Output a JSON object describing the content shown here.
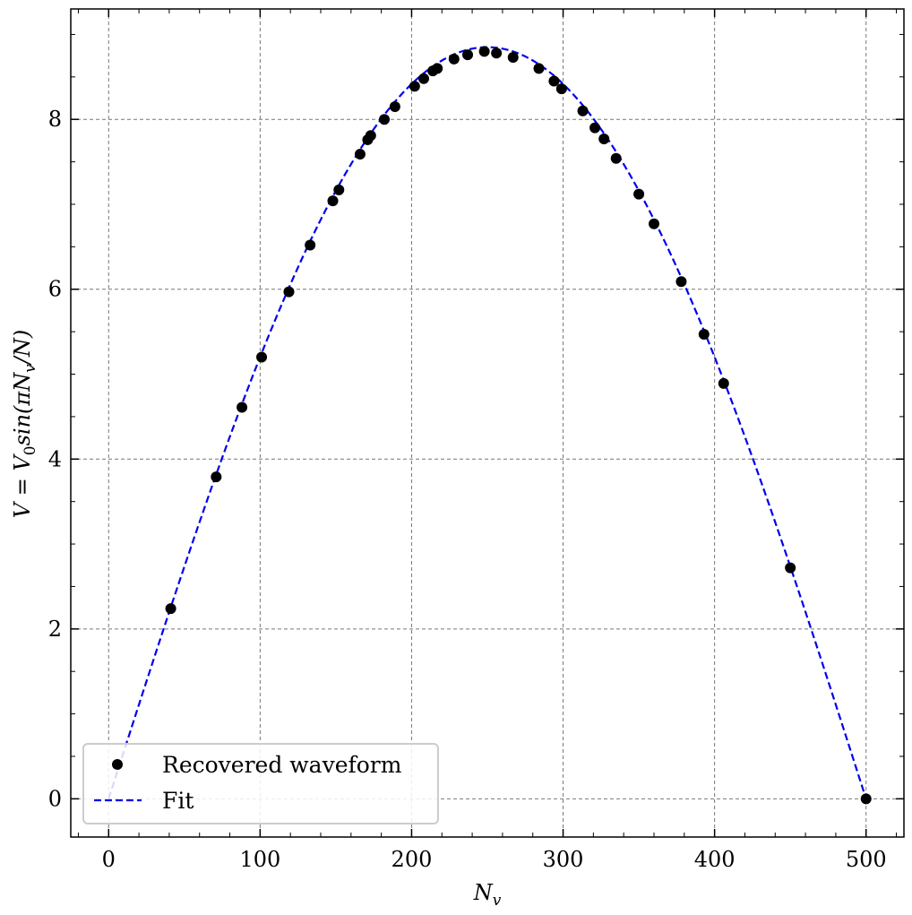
{
  "chart_data": {
    "type": "scatter",
    "xlabel": "N_v",
    "ylabel": "V = V₀sin(πN_v/N)",
    "xlim": [
      -25,
      525
    ],
    "ylim": [
      -0.45,
      9.3
    ],
    "x_ticks": [
      0,
      100,
      200,
      300,
      400,
      500
    ],
    "y_ticks": [
      0,
      2,
      4,
      6,
      8
    ],
    "grid": true,
    "legend_position": "lower-left",
    "series": [
      {
        "name": "Recovered waveform",
        "style": "markers",
        "color": "#000000",
        "points": [
          [
            41,
            2.24
          ],
          [
            71,
            3.79
          ],
          [
            88,
            4.61
          ],
          [
            101,
            5.2
          ],
          [
            119,
            5.97
          ],
          [
            133,
            6.52
          ],
          [
            148,
            7.04
          ],
          [
            152,
            7.17
          ],
          [
            166,
            7.59
          ],
          [
            171,
            7.76
          ],
          [
            173,
            7.81
          ],
          [
            182,
            8.0
          ],
          [
            189,
            8.15
          ],
          [
            202,
            8.39
          ],
          [
            208,
            8.48
          ],
          [
            214,
            8.57
          ],
          [
            217,
            8.6
          ],
          [
            228,
            8.71
          ],
          [
            237,
            8.76
          ],
          [
            248,
            8.8
          ],
          [
            256,
            8.78
          ],
          [
            267,
            8.73
          ],
          [
            284,
            8.6
          ],
          [
            294,
            8.45
          ],
          [
            299,
            8.36
          ],
          [
            313,
            8.1
          ],
          [
            321,
            7.9
          ],
          [
            327,
            7.77
          ],
          [
            335,
            7.54
          ],
          [
            350,
            7.12
          ],
          [
            360,
            6.77
          ],
          [
            378,
            6.09
          ],
          [
            393,
            5.47
          ],
          [
            406,
            4.89
          ],
          [
            450,
            2.72
          ],
          [
            500,
            0.0
          ]
        ]
      },
      {
        "name": "Fit",
        "style": "dashed-line",
        "color": "#0000ee",
        "function": "V0*sin(pi*x/N)",
        "params": {
          "V0": 8.85,
          "N": 500
        },
        "x_range": [
          0,
          500
        ]
      }
    ]
  }
}
